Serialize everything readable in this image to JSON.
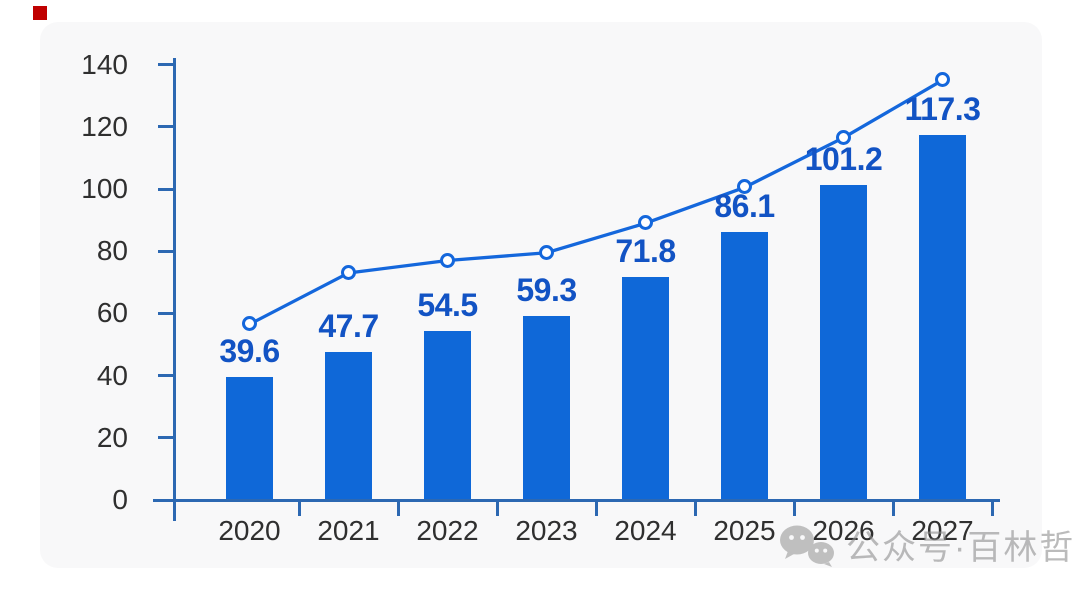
{
  "page": {
    "background": "#ffffff",
    "card_background": "#f8f8f9",
    "decoration_red_square_color": "#c00000",
    "watermark": {
      "icon": "wechat-chat-bubbles",
      "text": "公众号·百林哲",
      "color": "#8f8f8f"
    }
  },
  "chart_data": {
    "type": "combo",
    "categories": [
      "2020",
      "2021",
      "2022",
      "2023",
      "2024",
      "2025",
      "2026",
      "2027"
    ],
    "series": [
      {
        "name": "bar-values",
        "type": "bar",
        "color": "#0f68d8",
        "values": [
          39.6,
          47.7,
          54.5,
          59.3,
          71.8,
          86.1,
          101.2,
          117.3
        ],
        "data_labels": [
          "39.6",
          "47.7",
          "54.5",
          "59.3",
          "71.8",
          "86.1",
          "101.2",
          "117.3"
        ],
        "data_label_color": "#1253c4"
      },
      {
        "name": "trend-line",
        "type": "line",
        "color": "#1467dc",
        "marker": "open-circle",
        "marker_fill": "#ffffff",
        "estimated": true,
        "values": [
          56.5,
          73,
          77,
          79.5,
          89,
          100.5,
          116.5,
          135
        ]
      }
    ],
    "xlabel": "",
    "ylabel": "",
    "ylim": [
      0,
      140
    ],
    "yticks": [
      0,
      20,
      40,
      60,
      80,
      100,
      120,
      140
    ],
    "axis_color": "#2c68b2",
    "tick_label_color": "#2f2f2f",
    "grid": false,
    "legend": false
  }
}
